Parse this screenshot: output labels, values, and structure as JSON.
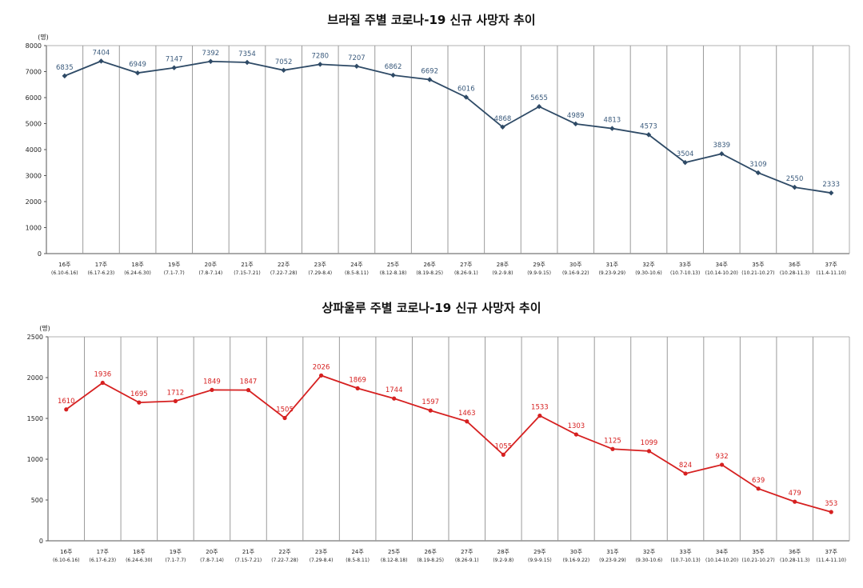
{
  "chart_data": [
    {
      "type": "line",
      "title": "브라질 주별 코로나-19 신규 사망자 추이",
      "unit_label": "(명)",
      "categories": [
        "16주",
        "17주",
        "18주",
        "19주",
        "20주",
        "21주",
        "22주",
        "23주",
        "24주",
        "25주",
        "26주",
        "27주",
        "28주",
        "29주",
        "30주",
        "31주",
        "32주",
        "33주",
        "34주",
        "35주",
        "36주",
        "37주"
      ],
      "date_ranges": [
        "(6.10-6.16)",
        "(6.17-6.23)",
        "(6.24-6.30)",
        "(7.1-7.7)",
        "(7.8-7.14)",
        "(7.15-7.21)",
        "(7.22-7.28)",
        "(7.29-8.4)",
        "(8.5-8.11)",
        "(8.12-8.18)",
        "(8.19-8.25)",
        "(8.26-9.1)",
        "(9.2-9.8)",
        "(9.9-9.15)",
        "(9.16-9.22)",
        "(9.23-9.29)",
        "(9.30-10.6)",
        "(10.7-10.13)",
        "(10.14-10.20)",
        "(10.21-10.27)",
        "(10.28-11.3)",
        "(11.4-11.10)"
      ],
      "values": [
        6835,
        7404,
        6949,
        7147,
        7392,
        7354,
        7052,
        7280,
        7207,
        6862,
        6692,
        6016,
        4868,
        5655,
        4989,
        4813,
        4573,
        3504,
        3839,
        3109,
        2550,
        2333
      ],
      "ylim": [
        0,
        8000
      ],
      "yticks": [
        0,
        1000,
        2000,
        3000,
        4000,
        5000,
        6000,
        7000,
        8000
      ],
      "line_color": "#2e4a66",
      "label_color": "#3a5a7c",
      "grid": "vertical"
    },
    {
      "type": "line",
      "title": "상파울루 주별 코로나-19 신규 사망자 추이",
      "unit_label": "(명)",
      "categories": [
        "16주",
        "17주",
        "18주",
        "19주",
        "20주",
        "21주",
        "22주",
        "23주",
        "24주",
        "25주",
        "26주",
        "27주",
        "28주",
        "29주",
        "30주",
        "31주",
        "32주",
        "33주",
        "34주",
        "35주",
        "36주",
        "37주"
      ],
      "date_ranges": [
        "(6.10-6.16)",
        "(6.17-6.23)",
        "(6.24-6.30)",
        "(7.1-7.7)",
        "(7.8-7.14)",
        "(7.15-7.21)",
        "(7.22-7.28)",
        "(7.29-8.4)",
        "(8.5-8.11)",
        "(8.12-8.18)",
        "(8.19-8.25)",
        "(8.26-9.1)",
        "(9.2-9.8)",
        "(9.9-9.15)",
        "(9.16-9.22)",
        "(9.23-9.29)",
        "(9.30-10.6)",
        "(10.7-10.13)",
        "(10.14-10.20)",
        "(10.21-10.27)",
        "(10.28-11.3)",
        "(11.4-11.10)"
      ],
      "values": [
        1610,
        1936,
        1695,
        1712,
        1849,
        1847,
        1505,
        2026,
        1869,
        1744,
        1597,
        1463,
        1055,
        1533,
        1303,
        1125,
        1099,
        824,
        932,
        639,
        479,
        353
      ],
      "ylim": [
        0,
        2500
      ],
      "yticks": [
        0,
        500,
        1000,
        1500,
        2000,
        2500
      ],
      "line_color": "#d62020",
      "label_color": "#d62020",
      "grid": "vertical"
    }
  ]
}
